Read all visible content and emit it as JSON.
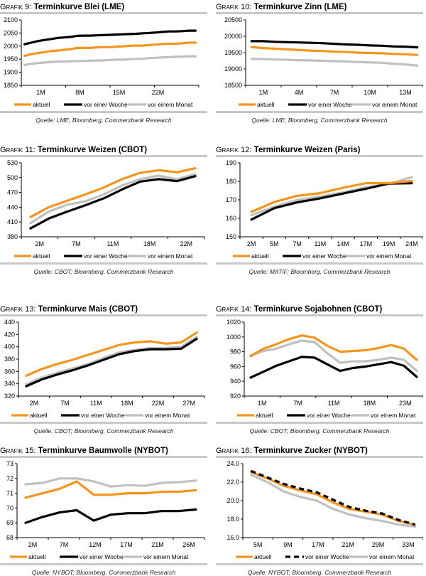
{
  "colors": {
    "aktuell": "#f7941d",
    "woche": "#000000",
    "monat": "#c0c0c0",
    "rule": "#c8c8c8"
  },
  "legend": [
    "aktuell",
    "vor einer Woche",
    "vor einem Monat"
  ],
  "chart_data": [
    {
      "type": "line",
      "prefix": "Grafik 9:",
      "title": "Terminkurve Blei (LME)",
      "source": "Quelle: LME; Bloomberg, Commerzbank Research",
      "ylim": [
        1850,
        2100
      ],
      "yticks": [
        "1850",
        "1900",
        "1950",
        "2000",
        "2050",
        "2100"
      ],
      "xtick_labels": [
        "1M",
        "8M",
        "15M",
        "22M"
      ],
      "n_points": 27,
      "series": [
        {
          "name": "aktuell",
          "values": [
            1963,
            1969,
            1973,
            1977,
            1981,
            1983,
            1986,
            1988,
            1993,
            1993,
            1993,
            1995,
            1996,
            1996,
            1998,
            1999,
            2001,
            2002,
            2002,
            2004,
            2006,
            2008,
            2009,
            2009,
            2011,
            2013,
            2013
          ]
        },
        {
          "name": "vor einer Woche",
          "values": [
            2007,
            2013,
            2019,
            2023,
            2027,
            2031,
            2033,
            2035,
            2039,
            2040,
            2040,
            2041,
            2042,
            2043,
            2044,
            2045,
            2046,
            2047,
            2049,
            2050,
            2052,
            2054,
            2056,
            2056,
            2057,
            2059,
            2059
          ]
        },
        {
          "name": "vor einem Monat",
          "values": [
            1928,
            1932,
            1935,
            1937,
            1939,
            1941,
            1941,
            1942,
            1943,
            1943,
            1944,
            1945,
            1945,
            1947,
            1948,
            1948,
            1950,
            1951,
            1952,
            1954,
            1955,
            1957,
            1958,
            1959,
            1960,
            1961,
            1961
          ]
        }
      ]
    },
    {
      "type": "line",
      "prefix": "Grafik 10:",
      "title": "Terminkurve Zinn (LME)",
      "source": "Quelle: LME; Bloomberg, Commerzbank Research",
      "ylim": [
        18500,
        20500
      ],
      "yticks": [
        "18500",
        "19000",
        "19500",
        "20000",
        "20500"
      ],
      "xtick_labels": [
        "1M",
        "4M",
        "7M",
        "10M",
        "13M"
      ],
      "n_points": 15,
      "series": [
        {
          "name": "aktuell",
          "values": [
            19670,
            19640,
            19620,
            19600,
            19580,
            19560,
            19550,
            19530,
            19520,
            19500,
            19490,
            19480,
            19460,
            19450,
            19430
          ]
        },
        {
          "name": "vor einer Woche",
          "values": [
            19850,
            19850,
            19830,
            19820,
            19810,
            19800,
            19790,
            19770,
            19750,
            19740,
            19720,
            19710,
            19690,
            19680,
            19660
          ]
        },
        {
          "name": "vor einem Monat",
          "values": [
            19310,
            19300,
            19290,
            19280,
            19270,
            19260,
            19250,
            19240,
            19230,
            19210,
            19200,
            19190,
            19160,
            19140,
            19100
          ]
        }
      ]
    },
    {
      "type": "line",
      "prefix": "Grafik 11:",
      "title": "Terminkurve Weizen (CBOT)",
      "source": "Quelle: CBOT; Bloomberg, Commerzbank Research",
      "ylim": [
        380,
        530
      ],
      "yticks": [
        "380",
        "410",
        "440",
        "470",
        "500",
        "530"
      ],
      "xtick_labels": [
        "2M",
        "7M",
        "11M",
        "18M",
        "22M"
      ],
      "n_points": 10,
      "series": [
        {
          "name": "aktuell",
          "values": [
            420,
            440,
            453,
            466,
            480,
            497,
            510,
            515,
            511,
            519
          ]
        },
        {
          "name": "vor einer Woche",
          "values": [
            397,
            417,
            431,
            444,
            458,
            476,
            492,
            497,
            493,
            503
          ]
        },
        {
          "name": "vor einem Monat",
          "values": [
            408,
            431,
            445,
            452,
            466,
            484,
            497,
            504,
            497,
            507
          ]
        }
      ]
    },
    {
      "type": "line",
      "prefix": "Grafik 12:",
      "title": "Terminkurve Weizen (Paris)",
      "source": "Quelle: MATIF; Bloomberg, Commerzbank Research",
      "ylim": [
        150,
        190
      ],
      "yticks": [
        "150",
        "160",
        "170",
        "180",
        "190"
      ],
      "xtick_labels": [
        "2M",
        "5M",
        "7M",
        "11M",
        "14M",
        "17M",
        "19M",
        "24M"
      ],
      "n_points": 8,
      "series": [
        {
          "name": "aktuell",
          "values": [
            163.5,
            168.8,
            172.2,
            173.6,
            176.5,
            179.0,
            179.0,
            180.2
          ]
        },
        {
          "name": "vor einer Woche",
          "values": [
            159.3,
            165.5,
            168.6,
            170.8,
            173.4,
            176.0,
            178.8,
            179.0
          ]
        },
        {
          "name": "vor einem Monat",
          "values": [
            161.7,
            166.3,
            169.9,
            171.8,
            174.0,
            176.8,
            178.5,
            182.3
          ]
        }
      ]
    },
    {
      "type": "line",
      "prefix": "Grafik 13:",
      "title": "Terminkurve Mais (CBOT)",
      "source": "Quelle: CBOT; Bloomberg, Commerzbank Research",
      "ylim": [
        320,
        440
      ],
      "yticks": [
        "320",
        "340",
        "360",
        "380",
        "400",
        "420",
        "440"
      ],
      "xtick_labels": [
        "2M",
        "7M",
        "11M",
        "18M",
        "22M",
        "27M"
      ],
      "n_points": 12,
      "series": [
        {
          "name": "aktuell",
          "values": [
            353,
            364,
            372,
            379,
            387,
            395,
            403,
            407,
            409,
            405,
            407,
            423
          ]
        },
        {
          "name": "vor einer Woche",
          "values": [
            336,
            347,
            355,
            362,
            370,
            379,
            388,
            393,
            396,
            396,
            397,
            413
          ]
        },
        {
          "name": "vor einem Monat",
          "values": [
            339,
            350,
            358,
            365,
            372,
            382,
            391,
            395,
            398,
            398,
            400,
            416
          ]
        }
      ]
    },
    {
      "type": "line",
      "prefix": "Grafik 14:",
      "title": "Terminkurve Sojabohnen (CBOT)",
      "source": "Quelle: CBOT; Bloomberg, Commerzbank Research",
      "ylim": [
        920,
        1020
      ],
      "yticks": [
        "920",
        "940",
        "960",
        "980",
        "1000",
        "1020"
      ],
      "xtick_labels": [
        "1M",
        "7M",
        "11M",
        "18M",
        "23M"
      ],
      "n_points": 14,
      "series": [
        {
          "name": "aktuell",
          "values": [
            974,
            984,
            990,
            997,
            1002,
            999,
            988,
            980,
            981,
            982,
            985,
            989,
            984,
            969
          ]
        },
        {
          "name": "vor einer Woche",
          "values": [
            945,
            953,
            961,
            967,
            973,
            972,
            963,
            954,
            958,
            960,
            963,
            966,
            961,
            946
          ]
        },
        {
          "name": "vor einem Monat",
          "values": [
            975,
            981,
            984,
            990,
            995,
            993,
            978,
            965,
            967,
            967,
            969,
            972,
            969,
            954
          ]
        }
      ]
    },
    {
      "type": "line",
      "prefix": "Grafik 15:",
      "title": "Terminkurve Baumwolle (NYBOT)",
      "source": "Quelle: NYBOT; Bloomberg, Commerzbank Research",
      "ylim": [
        68,
        73
      ],
      "yticks": [
        "68",
        "69",
        "70",
        "71",
        "72",
        "73"
      ],
      "xtick_labels": [
        "2M",
        "7M",
        "12M",
        "17M",
        "21M",
        "26M"
      ],
      "n_points": 11,
      "series": [
        {
          "name": "aktuell",
          "values": [
            70.7,
            71.0,
            71.3,
            71.8,
            70.9,
            70.9,
            71.0,
            71.0,
            71.1,
            71.1,
            71.2
          ]
        },
        {
          "name": "vor einer Woche",
          "values": [
            69.0,
            69.4,
            69.7,
            69.85,
            69.15,
            69.55,
            69.65,
            69.65,
            69.8,
            69.8,
            69.9
          ]
        },
        {
          "name": "vor einem Monat",
          "values": [
            71.6,
            71.7,
            72.0,
            72.0,
            71.8,
            71.45,
            71.55,
            71.5,
            71.7,
            71.75,
            71.85
          ]
        }
      ]
    },
    {
      "type": "line",
      "prefix": "Grafik 16:",
      "title": "Terminkurve Zucker (NYBOT)",
      "source": "Quelle: NYBOT; Bloomberg, Commerzbank Research",
      "ylim": [
        16.0,
        24.0
      ],
      "yticks": [
        "16.0",
        "18.0",
        "20.0",
        "22.0",
        "24.0"
      ],
      "xtick_labels": [
        "5M",
        "9M",
        "17M",
        "21M",
        "29M",
        "33M"
      ],
      "n_points": 11,
      "series": [
        {
          "name": "aktuell",
          "values": [
            23.1,
            22.4,
            21.6,
            21.1,
            20.7,
            19.8,
            19.1,
            18.8,
            18.5,
            17.8,
            17.4
          ]
        },
        {
          "name": "vor einer Woche",
          "values": [
            23.2,
            22.5,
            21.8,
            21.3,
            20.9,
            20.1,
            19.3,
            18.9,
            18.6,
            17.9,
            17.4
          ]
        },
        {
          "name": "vor einem Monat",
          "values": [
            22.8,
            22.0,
            21.0,
            20.4,
            20.0,
            19.1,
            18.5,
            18.1,
            17.8,
            17.4,
            17.2
          ]
        }
      ]
    }
  ]
}
